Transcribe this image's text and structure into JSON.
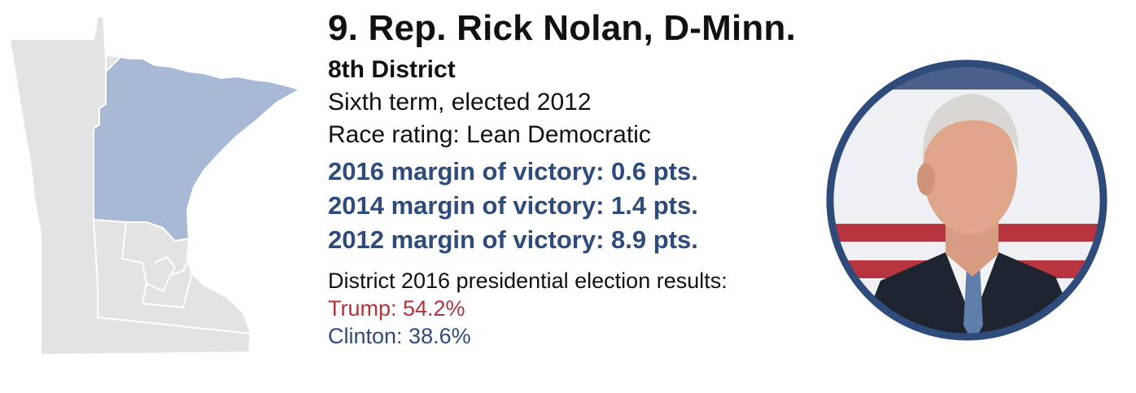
{
  "header": {
    "title": "9. Rep. Rick Nolan, D-Minn.",
    "district": "8th District",
    "term": "Sixth term, elected 2012",
    "race_rating": "Race rating: Lean Democratic"
  },
  "margins": [
    "2016 margin of victory: 0.6 pts.",
    "2014 margin of victory: 1.4 pts.",
    "2012 margin of victory: 8.9 pts."
  ],
  "presidential": {
    "heading": "District 2016 presidential election results:",
    "trump": "Trump: 54.2%",
    "clinton": "Clinton: 38.6%"
  },
  "colors": {
    "democrat_blue": "#2f4b7c",
    "republican_red": "#b1343a",
    "highlight_district": "#a7b9d4",
    "state_gray": "#e3e3e3"
  },
  "map": {
    "highlighted_district": "8th District"
  },
  "portrait": {
    "subject": "Rick Nolan photo"
  }
}
